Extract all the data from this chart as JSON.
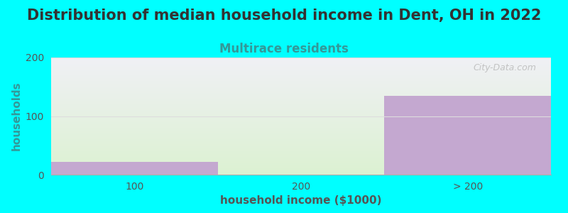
{
  "title": "Distribution of median household income in Dent, OH in 2022",
  "subtitle": "Multirace residents",
  "xlabel": "household income ($1000)",
  "ylabel": "households",
  "background_color": "#00FFFF",
  "plot_bg_top": "#F0F0F0",
  "plot_bg_bottom": "#E8F5E0",
  "bar_color": "#C4A8D0",
  "categories": [
    "100",
    "200",
    "> 200"
  ],
  "values": [
    22,
    0,
    135
  ],
  "ylim": [
    0,
    200
  ],
  "yticks": [
    0,
    100,
    200
  ],
  "title_fontsize": 15,
  "subtitle_fontsize": 12,
  "subtitle_color": "#339999",
  "ylabel_color": "#339999",
  "xlabel_color": "#555555",
  "axis_label_fontsize": 11,
  "tick_fontsize": 10,
  "tick_color": "#555555",
  "watermark": "City-Data.com",
  "watermark_color": "#BBBBBB",
  "grid_color": "#DDDDDD"
}
